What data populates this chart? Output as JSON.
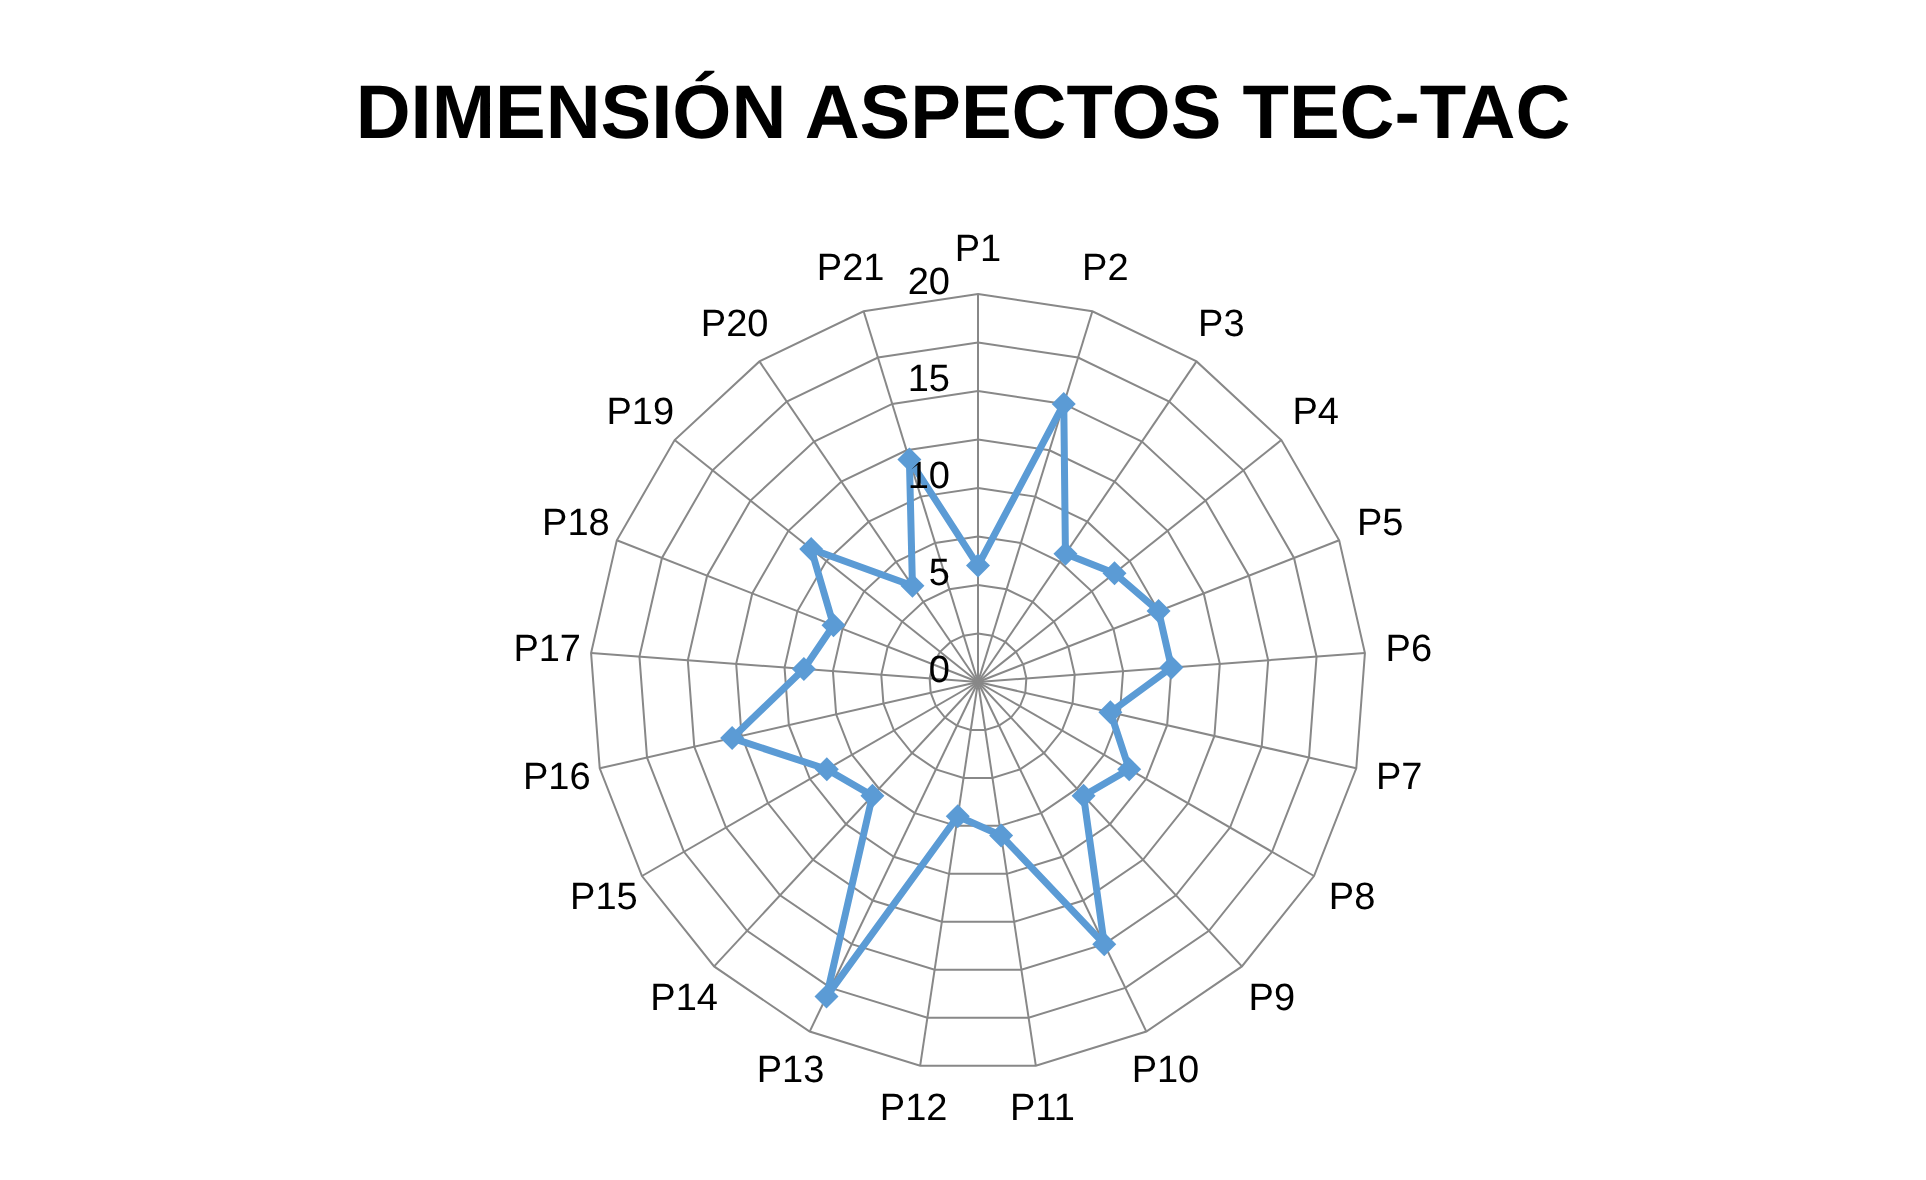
{
  "chart_data": {
    "type": "radar",
    "title": "DIMENSIÓN ASPECTOS TEC-TAC",
    "categories": [
      "P1",
      "P2",
      "P3",
      "P4",
      "P5",
      "P6",
      "P7",
      "P8",
      "P9",
      "P10",
      "P11",
      "P12",
      "P13",
      "P14",
      "P15",
      "P16",
      "P17",
      "P18",
      "P19",
      "P20",
      "P21"
    ],
    "series": [
      {
        "color": "#5b9bd5",
        "values": [
          6,
          15,
          8,
          9,
          10,
          10,
          7,
          9,
          8,
          15,
          8,
          7,
          18,
          8,
          9,
          13,
          9,
          8,
          11,
          6,
          12
        ]
      }
    ],
    "ylim": [
      0,
      20
    ],
    "yticks": [
      0,
      5,
      10,
      15,
      20
    ],
    "marker": "diamond"
  }
}
